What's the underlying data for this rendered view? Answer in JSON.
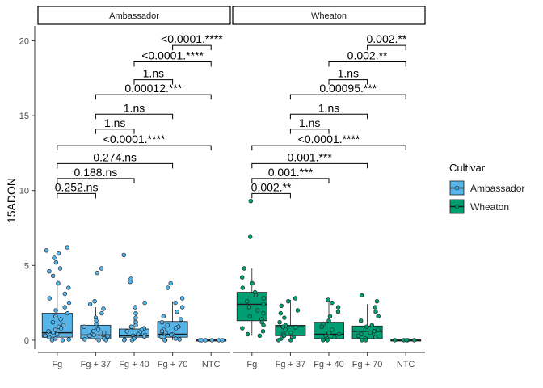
{
  "chart_data": {
    "type": "box",
    "ylabel": "15ADON",
    "xlabel": "",
    "ylim": [
      -0.6,
      21
    ],
    "yticks": [
      0,
      5,
      10,
      15,
      20
    ],
    "categories": [
      "Fg",
      "Fg + 37",
      "Fg + 40",
      "Fg + 70",
      "NTC"
    ],
    "legend": {
      "title": "Cultivar",
      "position": "right",
      "entries": [
        {
          "name": "Ambassador",
          "color": "#56B4E9"
        },
        {
          "name": "Wheaton",
          "color": "#009E73"
        }
      ]
    },
    "panels": [
      {
        "name": "Ambassador",
        "color": "#56B4E9",
        "boxes": [
          {
            "category": "Fg",
            "min": 0.0,
            "q1": 0.2,
            "median": 0.5,
            "q3": 1.8,
            "max": 4.0,
            "points": [
              6.2,
              6.0,
              5.8,
              5.5,
              5.2,
              4.8,
              4.6,
              4.3,
              3.8,
              3.5,
              3.1,
              2.8,
              2.5,
              2.2,
              2.0,
              1.8,
              1.6,
              1.4,
              1.2,
              1.0,
              0.9,
              0.8,
              0.7,
              0.6,
              0.5,
              0.4,
              0.3,
              0.2,
              0.1,
              0.05,
              0.0,
              0.0
            ]
          },
          {
            "category": "Fg + 37",
            "min": 0.0,
            "q1": 0.1,
            "median": 0.35,
            "q3": 1.0,
            "max": 2.2,
            "points": [
              4.8,
              4.5,
              2.6,
              2.4,
              2.1,
              1.8,
              1.5,
              1.3,
              1.1,
              0.9,
              0.8,
              0.7,
              0.6,
              0.5,
              0.4,
              0.35,
              0.3,
              0.25,
              0.2,
              0.15,
              0.1,
              0.05,
              0.0,
              0.0
            ]
          },
          {
            "category": "Fg + 40",
            "min": 0.0,
            "q1": 0.2,
            "median": 0.3,
            "q3": 0.75,
            "max": 1.5,
            "points": [
              5.7,
              4.1,
              3.9,
              2.5,
              2.2,
              1.8,
              1.5,
              1.2,
              1.0,
              0.9,
              0.8,
              0.7,
              0.6,
              0.5,
              0.4,
              0.35,
              0.3,
              0.25,
              0.2,
              0.15,
              0.1,
              0.05,
              0.0,
              0.0
            ]
          },
          {
            "category": "Fg + 70",
            "min": 0.0,
            "q1": 0.2,
            "median": 0.4,
            "q3": 1.25,
            "max": 2.6,
            "points": [
              3.8,
              3.5,
              2.8,
              2.5,
              2.2,
              1.9,
              1.6,
              1.4,
              1.2,
              1.0,
              0.9,
              0.8,
              0.7,
              0.6,
              0.5,
              0.4,
              0.35,
              0.3,
              0.25,
              0.2,
              0.1,
              0.05,
              0.0,
              0.0
            ]
          },
          {
            "category": "NTC",
            "min": 0.0,
            "q1": 0.0,
            "median": 0.0,
            "q3": 0.02,
            "max": 0.05,
            "points": [
              0.0,
              0.0,
              0.0,
              0.0,
              0.0,
              0.0
            ]
          }
        ],
        "comparisons": [
          {
            "from": "Fg",
            "to": "Fg + 37",
            "y": 9.8,
            "label": "0.252.ns"
          },
          {
            "from": "Fg",
            "to": "Fg + 40",
            "y": 10.8,
            "label": "0.188.ns"
          },
          {
            "from": "Fg",
            "to": "Fg + 70",
            "y": 11.8,
            "label": "0.274.ns"
          },
          {
            "from": "Fg",
            "to": "NTC",
            "y": 13.0,
            "label": "<0.0001.****"
          },
          {
            "from": "Fg + 37",
            "to": "Fg + 40",
            "y": 14.1,
            "label": "1.ns"
          },
          {
            "from": "Fg + 37",
            "to": "Fg + 70",
            "y": 15.1,
            "label": "1.ns"
          },
          {
            "from": "Fg + 37",
            "to": "NTC",
            "y": 16.4,
            "label": "0.00012.***"
          },
          {
            "from": "Fg + 40",
            "to": "Fg + 70",
            "y": 17.4,
            "label": "1.ns"
          },
          {
            "from": "Fg + 40",
            "to": "NTC",
            "y": 18.6,
            "label": "<0.0001.****"
          },
          {
            "from": "Fg + 70",
            "to": "NTC",
            "y": 19.7,
            "label": "<0.0001.****"
          }
        ]
      },
      {
        "name": "Wheaton",
        "color": "#009E73",
        "boxes": [
          {
            "category": "Fg",
            "min": 0.3,
            "q1": 1.3,
            "median": 2.4,
            "q3": 3.2,
            "max": 4.8,
            "points": [
              9.3,
              6.9,
              4.8,
              4.2,
              3.8,
              3.5,
              3.2,
              3.0,
              2.8,
              2.6,
              2.4,
              2.2,
              2.0,
              1.8,
              1.6,
              1.4,
              1.2,
              1.0,
              0.8,
              0.6,
              0.4,
              0.3
            ]
          },
          {
            "category": "Fg + 37",
            "min": 0.0,
            "q1": 0.3,
            "median": 0.9,
            "q3": 1.0,
            "max": 2.7,
            "points": [
              2.8,
              2.6,
              2.3,
              2.0,
              1.8,
              1.5,
              1.2,
              1.0,
              0.9,
              0.85,
              0.7,
              0.5,
              0.4,
              0.3,
              0.2,
              0.1,
              0.0,
              0.0
            ]
          },
          {
            "category": "Fg + 40",
            "min": 0.0,
            "q1": 0.1,
            "median": 0.4,
            "q3": 1.2,
            "max": 2.6,
            "points": [
              2.7,
              2.5,
              2.2,
              1.9,
              1.6,
              1.3,
              1.1,
              0.9,
              0.7,
              0.5,
              0.4,
              0.3,
              0.2,
              0.1,
              0.0,
              0.0
            ]
          },
          {
            "category": "Fg + 70",
            "min": 0.0,
            "q1": 0.1,
            "median": 0.6,
            "q3": 0.95,
            "max": 2.4,
            "points": [
              3.0,
              2.6,
              2.2,
              1.9,
              1.6,
              1.3,
              1.0,
              0.9,
              0.7,
              0.6,
              0.5,
              0.4,
              0.3,
              0.2,
              0.1,
              0.0,
              0.0
            ]
          },
          {
            "category": "NTC",
            "min": 0.0,
            "q1": 0.0,
            "median": 0.0,
            "q3": 0.02,
            "max": 0.05,
            "points": [
              0.0,
              0.0,
              0.0,
              0.0,
              0.0
            ]
          }
        ],
        "comparisons": [
          {
            "from": "Fg",
            "to": "Fg + 37",
            "y": 9.8,
            "label": "0.002.**"
          },
          {
            "from": "Fg",
            "to": "Fg + 40",
            "y": 10.8,
            "label": "0.001.***"
          },
          {
            "from": "Fg",
            "to": "Fg + 70",
            "y": 11.8,
            "label": "0.001.***"
          },
          {
            "from": "Fg",
            "to": "NTC",
            "y": 13.0,
            "label": "<0.0001.****"
          },
          {
            "from": "Fg + 37",
            "to": "Fg + 40",
            "y": 14.1,
            "label": "1.ns"
          },
          {
            "from": "Fg + 37",
            "to": "Fg + 70",
            "y": 15.1,
            "label": "1.ns"
          },
          {
            "from": "Fg + 37",
            "to": "NTC",
            "y": 16.4,
            "label": "0.00095.***"
          },
          {
            "from": "Fg + 40",
            "to": "Fg + 70",
            "y": 17.4,
            "label": "1.ns"
          },
          {
            "from": "Fg + 40",
            "to": "NTC",
            "y": 18.6,
            "label": "0.002.**"
          },
          {
            "from": "Fg + 70",
            "to": "NTC",
            "y": 19.7,
            "label": "0.002.**"
          }
        ]
      }
    ]
  }
}
